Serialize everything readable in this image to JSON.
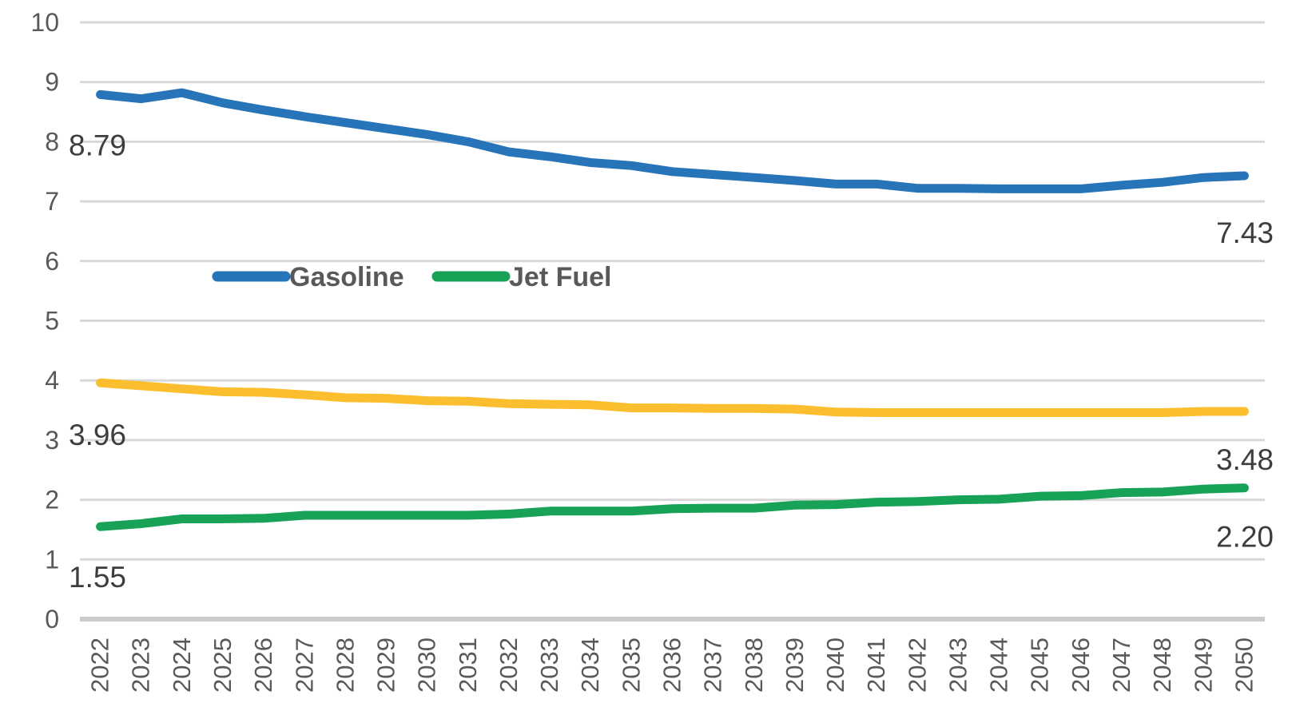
{
  "chart_data": {
    "type": "line",
    "title": "",
    "xlabel": "",
    "ylabel": "",
    "x_categories": [
      "2022",
      "2023",
      "2024",
      "2025",
      "2026",
      "2027",
      "2028",
      "2029",
      "2030",
      "2031",
      "2032",
      "2033",
      "2034",
      "2035",
      "2036",
      "2037",
      "2038",
      "2039",
      "2040",
      "2041",
      "2042",
      "2043",
      "2044",
      "2045",
      "2046",
      "2047",
      "2048",
      "2049",
      "2050"
    ],
    "ylim": [
      0,
      10
    ],
    "yticks": [
      "0",
      "1",
      "2",
      "3",
      "4",
      "5",
      "6",
      "7",
      "8",
      "9",
      "10"
    ],
    "grid": true,
    "legend": {
      "position": "inside-left-middle",
      "entries": [
        "Gasoline",
        "Jet Fuel"
      ]
    },
    "series": [
      {
        "name": "Gasoline",
        "color": "#2874B8",
        "show_in_legend": true,
        "first_point_label": "8.79",
        "last_point_label": "7.43",
        "values": [
          8.79,
          8.72,
          8.82,
          8.65,
          8.53,
          8.42,
          8.32,
          8.22,
          8.12,
          8.0,
          7.83,
          7.75,
          7.65,
          7.6,
          7.5,
          7.45,
          7.4,
          7.35,
          7.29,
          7.29,
          7.22,
          7.22,
          7.21,
          7.21,
          7.21,
          7.27,
          7.32,
          7.4,
          7.43
        ]
      },
      {
        "name": "",
        "color": "#FBBE2E",
        "show_in_legend": false,
        "first_point_label": "3.96",
        "last_point_label": "3.48",
        "values": [
          3.96,
          3.91,
          3.86,
          3.81,
          3.8,
          3.76,
          3.71,
          3.7,
          3.66,
          3.65,
          3.61,
          3.6,
          3.59,
          3.54,
          3.54,
          3.53,
          3.53,
          3.52,
          3.47,
          3.46,
          3.46,
          3.46,
          3.46,
          3.46,
          3.46,
          3.46,
          3.46,
          3.48,
          3.48
        ]
      },
      {
        "name": "Jet Fuel",
        "color": "#17A258",
        "show_in_legend": true,
        "first_point_label": "1.55",
        "last_point_label": "2.20",
        "values": [
          1.55,
          1.6,
          1.68,
          1.68,
          1.69,
          1.74,
          1.74,
          1.74,
          1.74,
          1.74,
          1.76,
          1.81,
          1.81,
          1.81,
          1.85,
          1.86,
          1.86,
          1.91,
          1.92,
          1.96,
          1.97,
          2.0,
          2.01,
          2.06,
          2.07,
          2.12,
          2.13,
          2.18,
          2.2
        ]
      }
    ],
    "colors": {
      "background": "#FFFFFF",
      "gridline": "#D9D9D9",
      "axis_line": "#CBCBCB",
      "tick_label": "#595959",
      "data_label": "#3D3D3D",
      "legend_text": "#595959"
    }
  }
}
